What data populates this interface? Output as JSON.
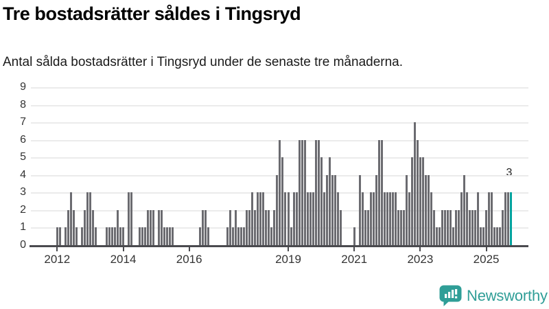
{
  "header": {
    "title": "Tre bostadsrätter såldes i Tingsryd",
    "subtitle": "Antal sålda bostadsrätter i Tingsryd under de senaste tre månaderna."
  },
  "chart_data": {
    "type": "bar",
    "title": "Tre bostadsrätter såldes i Tingsryd",
    "xlabel": "",
    "ylabel": "",
    "ylim": [
      0,
      9
    ],
    "grid": true,
    "x_start": "2012-01",
    "x_end": "2025-10",
    "x_tick_labels": [
      "2012",
      "2014",
      "2016",
      "2019",
      "2021",
      "2023",
      "2025"
    ],
    "x_tick_month_index": [
      0,
      24,
      48,
      84,
      108,
      132,
      156
    ],
    "y_ticks": [
      0,
      1,
      2,
      3,
      4,
      5,
      6,
      7,
      8,
      9
    ],
    "values": [
      1,
      1,
      0,
      1,
      2,
      3,
      2,
      1,
      0,
      1,
      2,
      3,
      3,
      2,
      1,
      0,
      0,
      0,
      1,
      1,
      1,
      1,
      2,
      1,
      1,
      0,
      3,
      3,
      0,
      0,
      1,
      1,
      1,
      2,
      2,
      2,
      0,
      2,
      2,
      1,
      1,
      1,
      1,
      0,
      0,
      0,
      0,
      0,
      0,
      0,
      0,
      0,
      1,
      2,
      2,
      1,
      0,
      0,
      0,
      0,
      0,
      0,
      1,
      2,
      1,
      2,
      1,
      1,
      1,
      2,
      2,
      3,
      2,
      3,
      3,
      3,
      2,
      2,
      1,
      2,
      4,
      6,
      5,
      3,
      3,
      1,
      3,
      3,
      6,
      6,
      6,
      3,
      3,
      3,
      6,
      6,
      5,
      3,
      4,
      5,
      4,
      4,
      3,
      2,
      0,
      0,
      0,
      0,
      1,
      0,
      4,
      3,
      2,
      2,
      3,
      3,
      4,
      6,
      6,
      3,
      3,
      3,
      3,
      3,
      2,
      2,
      2,
      4,
      3,
      5,
      7,
      6,
      5,
      5,
      4,
      4,
      3,
      2,
      1,
      1,
      2,
      2,
      2,
      2,
      1,
      2,
      2,
      3,
      4,
      3,
      2,
      2,
      2,
      3,
      1,
      1,
      2,
      3,
      3,
      1,
      1,
      1,
      2,
      3,
      3,
      3
    ],
    "highlight_index": 165,
    "highlight_value_label": "3",
    "bar_color": "#6b6b70",
    "highlight_color": "#00a29d",
    "legend_position": "none"
  },
  "branding": {
    "logo_text": "Newsworthy",
    "logo_color": "#2f9e97"
  }
}
